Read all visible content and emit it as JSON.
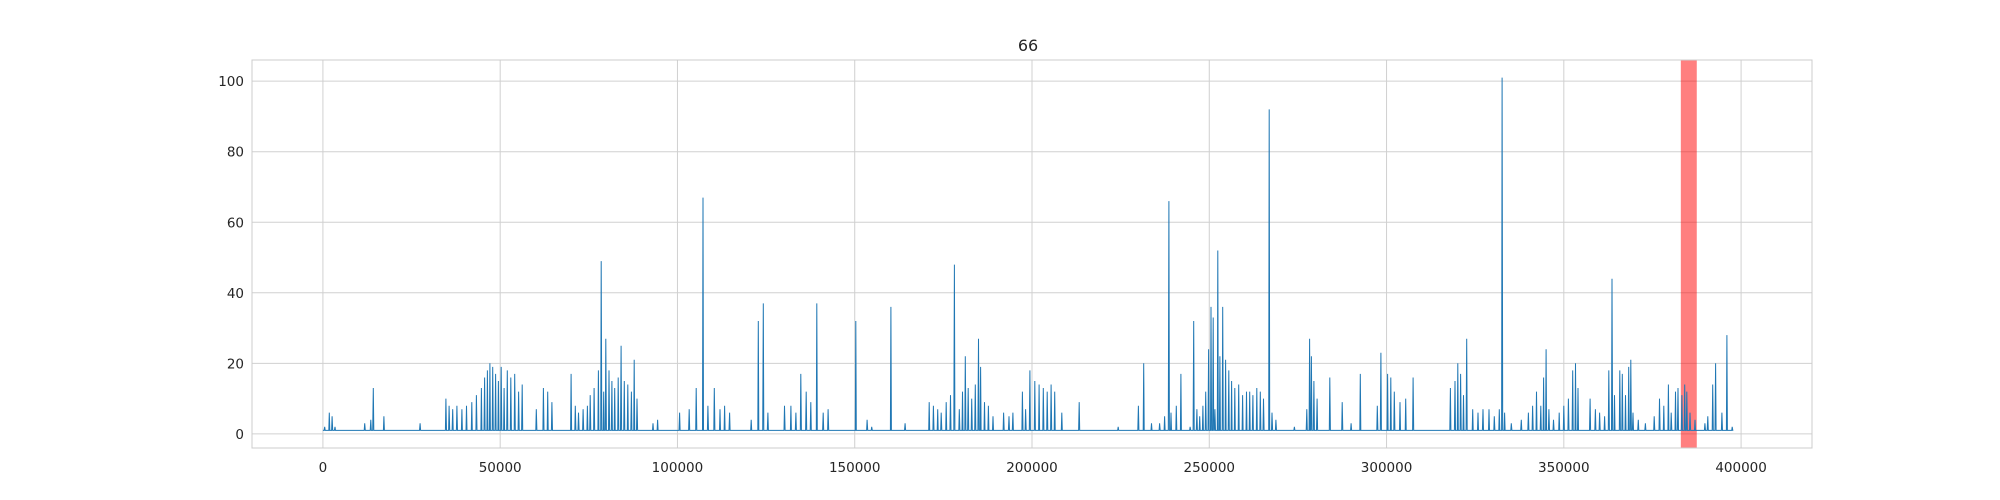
{
  "chart_data": {
    "type": "line",
    "title": "66",
    "xlabel": "",
    "ylabel": "",
    "xlim": [
      -20000,
      420000
    ],
    "ylim": [
      -4,
      106
    ],
    "x_ticks": [
      0,
      50000,
      100000,
      150000,
      200000,
      250000,
      300000,
      350000,
      400000
    ],
    "x_tick_labels": [
      "0",
      "50000",
      "100000",
      "150000",
      "200000",
      "250000",
      "300000",
      "350000",
      "400000"
    ],
    "y_ticks": [
      0,
      20,
      40,
      60,
      80,
      100
    ],
    "y_tick_labels": [
      "0",
      "20",
      "40",
      "60",
      "80",
      "100"
    ],
    "grid": true,
    "legend": "none",
    "colors": {
      "series": "#1f77b4",
      "highlight": "#ff0000",
      "grid": "#d0d0d0",
      "frame": "#cccccc"
    },
    "highlight_band": {
      "x_start": 383000,
      "x_end": 387500,
      "opacity": 0.5
    },
    "series": [
      {
        "baseline": 1,
        "peaks": [
          [
            500,
            2
          ],
          [
            1800,
            6
          ],
          [
            2600,
            5
          ],
          [
            3400,
            2
          ],
          [
            11800,
            3
          ],
          [
            13500,
            4
          ],
          [
            14200,
            13
          ],
          [
            17200,
            5
          ],
          [
            27400,
            3
          ],
          [
            34700,
            10
          ],
          [
            35600,
            8
          ],
          [
            36600,
            7
          ],
          [
            37800,
            8
          ],
          [
            39200,
            7
          ],
          [
            40500,
            8
          ],
          [
            42000,
            9
          ],
          [
            43300,
            11
          ],
          [
            44700,
            13
          ],
          [
            45600,
            16
          ],
          [
            46400,
            18
          ],
          [
            47100,
            20
          ],
          [
            47900,
            19
          ],
          [
            48700,
            17
          ],
          [
            49500,
            15
          ],
          [
            50300,
            19
          ],
          [
            51100,
            13
          ],
          [
            52000,
            18
          ],
          [
            53000,
            16
          ],
          [
            54100,
            17
          ],
          [
            55200,
            12
          ],
          [
            56200,
            14
          ],
          [
            60200,
            7
          ],
          [
            62200,
            13
          ],
          [
            63400,
            12
          ],
          [
            64600,
            9
          ],
          [
            70000,
            17
          ],
          [
            71200,
            8
          ],
          [
            72100,
            6
          ],
          [
            73400,
            7
          ],
          [
            74600,
            8
          ],
          [
            75400,
            11
          ],
          [
            76500,
            13
          ],
          [
            77700,
            18
          ],
          [
            78500,
            49
          ],
          [
            79200,
            12
          ],
          [
            79800,
            27
          ],
          [
            80700,
            18
          ],
          [
            81500,
            15
          ],
          [
            82300,
            13
          ],
          [
            83300,
            16
          ],
          [
            84100,
            25
          ],
          [
            85000,
            15
          ],
          [
            86000,
            14
          ],
          [
            87000,
            12
          ],
          [
            87800,
            21
          ],
          [
            88600,
            10
          ],
          [
            93100,
            3
          ],
          [
            94400,
            4
          ],
          [
            100600,
            6
          ],
          [
            103300,
            7
          ],
          [
            105300,
            13
          ],
          [
            107200,
            67
          ],
          [
            108600,
            8
          ],
          [
            110400,
            13
          ],
          [
            112000,
            7
          ],
          [
            113300,
            8
          ],
          [
            114700,
            6
          ],
          [
            120800,
            4
          ],
          [
            122800,
            32
          ],
          [
            124200,
            37
          ],
          [
            125500,
            6
          ],
          [
            130200,
            8
          ],
          [
            132000,
            8
          ],
          [
            133400,
            6
          ],
          [
            134800,
            17
          ],
          [
            136300,
            12
          ],
          [
            137600,
            9
          ],
          [
            139300,
            37
          ],
          [
            141100,
            6
          ],
          [
            142500,
            7
          ],
          [
            150300,
            32
          ],
          [
            153500,
            4
          ],
          [
            154800,
            2
          ],
          [
            160200,
            36
          ],
          [
            164200,
            3
          ],
          [
            171000,
            9
          ],
          [
            172200,
            8
          ],
          [
            173400,
            7
          ],
          [
            174400,
            6
          ],
          [
            175800,
            9
          ],
          [
            177000,
            11
          ],
          [
            178100,
            48
          ],
          [
            179500,
            7
          ],
          [
            180400,
            12
          ],
          [
            181200,
            22
          ],
          [
            182000,
            13
          ],
          [
            183000,
            10
          ],
          [
            184000,
            14
          ],
          [
            184900,
            27
          ],
          [
            185500,
            19
          ],
          [
            186600,
            9
          ],
          [
            187700,
            8
          ],
          [
            189000,
            5
          ],
          [
            192000,
            6
          ],
          [
            193500,
            5
          ],
          [
            194600,
            6
          ],
          [
            197300,
            12
          ],
          [
            198200,
            7
          ],
          [
            199400,
            18
          ],
          [
            200800,
            15
          ],
          [
            202000,
            14
          ],
          [
            203200,
            13
          ],
          [
            204300,
            12
          ],
          [
            205400,
            14
          ],
          [
            206400,
            12
          ],
          [
            208400,
            6
          ],
          [
            213300,
            9
          ],
          [
            224300,
            2
          ],
          [
            230000,
            8
          ],
          [
            231500,
            20
          ],
          [
            233700,
            3
          ],
          [
            236000,
            3
          ],
          [
            237400,
            5
          ],
          [
            238600,
            66
          ],
          [
            239200,
            6
          ],
          [
            240700,
            8
          ],
          [
            242000,
            17
          ],
          [
            244600,
            2
          ],
          [
            245600,
            32
          ],
          [
            246500,
            7
          ],
          [
            247300,
            5
          ],
          [
            248200,
            8
          ],
          [
            249000,
            12
          ],
          [
            249800,
            24
          ],
          [
            250500,
            36
          ],
          [
            251100,
            33
          ],
          [
            251600,
            7
          ],
          [
            252400,
            52
          ],
          [
            253000,
            22
          ],
          [
            253800,
            36
          ],
          [
            254600,
            21
          ],
          [
            255500,
            18
          ],
          [
            256300,
            15
          ],
          [
            257200,
            13
          ],
          [
            258300,
            14
          ],
          [
            259400,
            11
          ],
          [
            260500,
            12
          ],
          [
            261400,
            12
          ],
          [
            262300,
            11
          ],
          [
            263400,
            13
          ],
          [
            264400,
            12
          ],
          [
            265300,
            10
          ],
          [
            266900,
            92
          ],
          [
            267700,
            6
          ],
          [
            268800,
            4
          ],
          [
            274000,
            2
          ],
          [
            277500,
            7
          ],
          [
            278300,
            27
          ],
          [
            278800,
            22
          ],
          [
            279500,
            15
          ],
          [
            280400,
            10
          ],
          [
            284000,
            16
          ],
          [
            287500,
            9
          ],
          [
            290000,
            3
          ],
          [
            292600,
            17
          ],
          [
            297400,
            8
          ],
          [
            298400,
            23
          ],
          [
            300300,
            17
          ],
          [
            301200,
            16
          ],
          [
            302200,
            12
          ],
          [
            303800,
            9
          ],
          [
            305400,
            10
          ],
          [
            307500,
            16
          ],
          [
            318000,
            13
          ],
          [
            319300,
            15
          ],
          [
            320100,
            20
          ],
          [
            320900,
            17
          ],
          [
            321700,
            11
          ],
          [
            322600,
            27
          ],
          [
            324300,
            7
          ],
          [
            325800,
            6
          ],
          [
            327200,
            7
          ],
          [
            328900,
            7
          ],
          [
            330400,
            5
          ],
          [
            331800,
            7
          ],
          [
            332600,
            101
          ],
          [
            333300,
            6
          ],
          [
            335200,
            3
          ],
          [
            338000,
            4
          ],
          [
            340000,
            6
          ],
          [
            341200,
            8
          ],
          [
            342300,
            12
          ],
          [
            343500,
            8
          ],
          [
            344300,
            16
          ],
          [
            345000,
            24
          ],
          [
            345800,
            7
          ],
          [
            347100,
            4
          ],
          [
            348700,
            6
          ],
          [
            350000,
            8
          ],
          [
            351300,
            10
          ],
          [
            352500,
            18
          ],
          [
            353300,
            20
          ],
          [
            354000,
            13
          ],
          [
            357400,
            10
          ],
          [
            358900,
            7
          ],
          [
            360100,
            6
          ],
          [
            361500,
            5
          ],
          [
            362700,
            18
          ],
          [
            363600,
            44
          ],
          [
            364300,
            11
          ],
          [
            365800,
            18
          ],
          [
            366500,
            17
          ],
          [
            367400,
            11
          ],
          [
            368300,
            19
          ],
          [
            368900,
            21
          ],
          [
            369500,
            6
          ],
          [
            371000,
            4
          ],
          [
            373000,
            3
          ],
          [
            375500,
            5
          ],
          [
            377000,
            10
          ],
          [
            378200,
            8
          ],
          [
            379500,
            14
          ],
          [
            380300,
            6
          ],
          [
            381500,
            12
          ],
          [
            382200,
            13
          ],
          [
            383300,
            11
          ],
          [
            384100,
            14
          ],
          [
            384700,
            12
          ],
          [
            385600,
            6
          ],
          [
            387000,
            4
          ],
          [
            389800,
            3
          ],
          [
            390600,
            5
          ],
          [
            392000,
            14
          ],
          [
            392800,
            20
          ],
          [
            394600,
            6
          ],
          [
            396000,
            28
          ],
          [
            397500,
            2
          ]
        ]
      }
    ]
  }
}
